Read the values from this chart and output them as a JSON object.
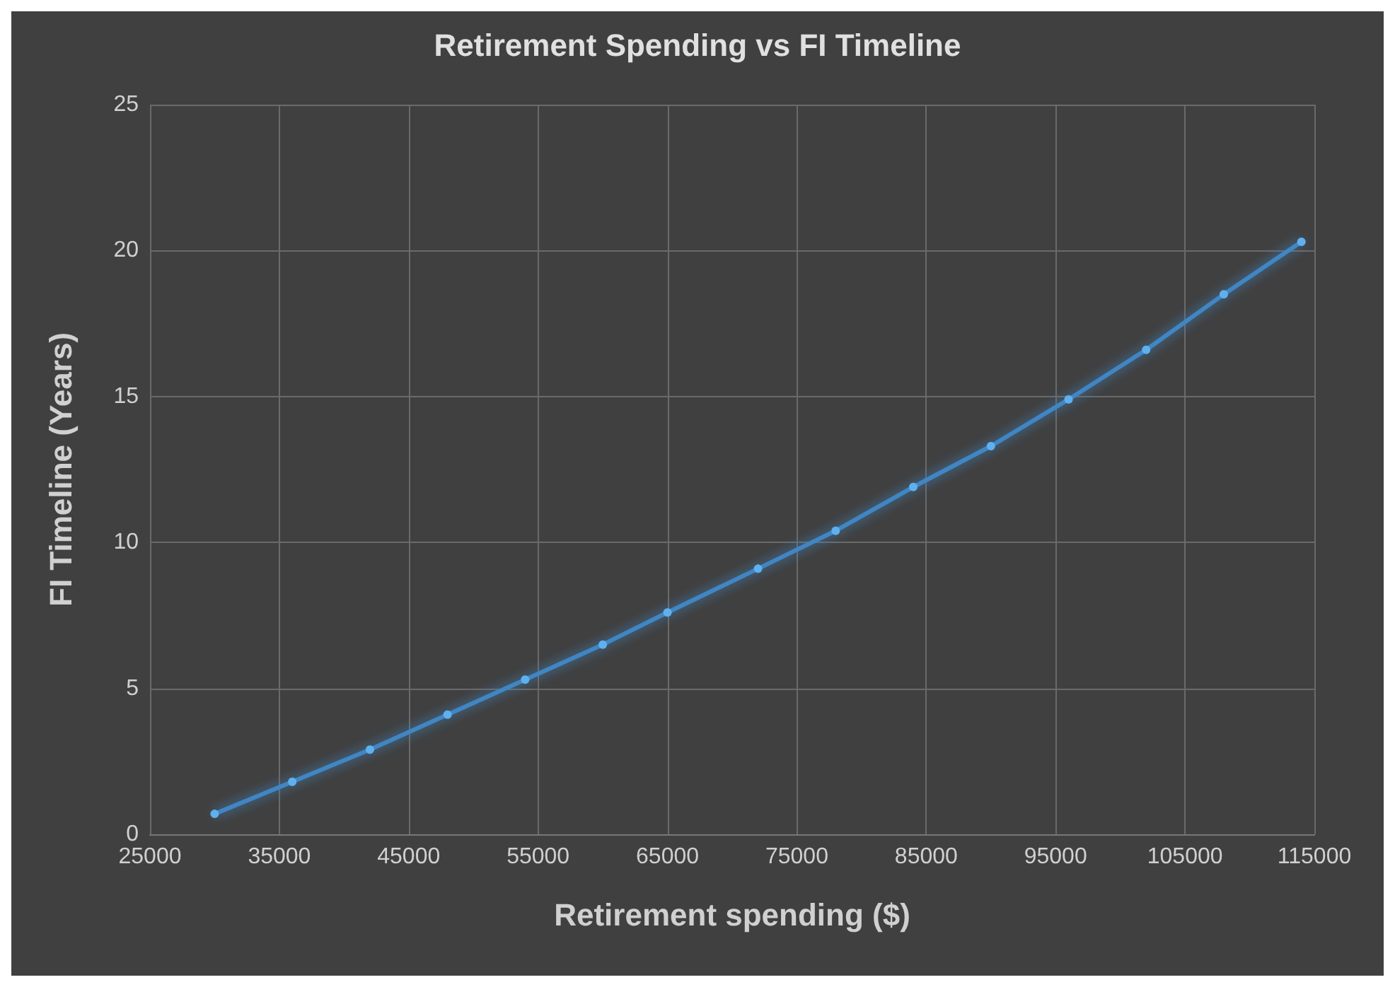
{
  "chart_data": {
    "type": "line",
    "title": "Retirement Spending vs FI Timeline",
    "xlabel": "Retirement spending ($)",
    "ylabel": "FI Timeline (Years)",
    "x": [
      30000,
      36000,
      42000,
      48000,
      54000,
      60000,
      65000,
      72000,
      78000,
      84000,
      90000,
      96000,
      102000,
      108000,
      114000
    ],
    "series": [
      {
        "color": "#3f86c4",
        "values": [
          0.7,
          1.8,
          2.9,
          4.1,
          5.3,
          6.5,
          7.6,
          9.1,
          10.4,
          11.9,
          13.3,
          14.9,
          16.6,
          18.5,
          20.3
        ]
      }
    ],
    "xlim": [
      25000,
      115000
    ],
    "xticks": [
      25000,
      35000,
      45000,
      55000,
      65000,
      75000,
      85000,
      95000,
      105000,
      115000
    ],
    "ylim": [
      0,
      25
    ],
    "yticks": [
      0,
      5,
      10,
      15,
      20,
      25
    ],
    "grid": true,
    "marker": "circle",
    "line_style": "solid"
  }
}
